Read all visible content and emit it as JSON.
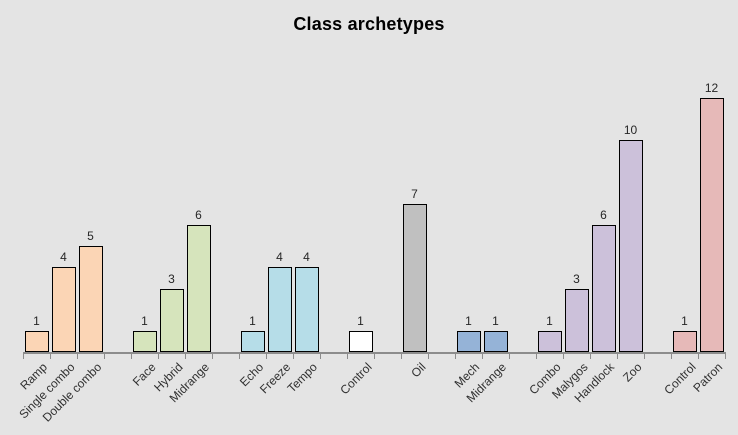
{
  "chart_data": {
    "type": "bar",
    "title": "Class archetypes",
    "xlabel": "",
    "ylabel": "",
    "ylim": [
      0,
      12
    ],
    "grid": false,
    "legend": "none",
    "value_labels": true,
    "category_label_rotation_deg": -45,
    "groups": [
      {
        "name": "group-1",
        "color": "#FBD5B5",
        "bars": [
          {
            "label": "Ramp",
            "value": 1
          },
          {
            "label": "Single combo",
            "value": 4
          },
          {
            "label": "Double combo",
            "value": 5
          }
        ]
      },
      {
        "name": "group-2",
        "color": "#D6E4BC",
        "bars": [
          {
            "label": "Face",
            "value": 1
          },
          {
            "label": "Hybrid",
            "value": 3
          },
          {
            "label": "Midrange",
            "value": 6
          }
        ]
      },
      {
        "name": "group-3",
        "color": "#B6DDE8",
        "bars": [
          {
            "label": "Echo",
            "value": 1
          },
          {
            "label": "Freeze",
            "value": 4
          },
          {
            "label": "Tempo",
            "value": 4
          }
        ]
      },
      {
        "name": "group-4",
        "color": "#FFFFFF",
        "bars": [
          {
            "label": "Control",
            "value": 1
          }
        ]
      },
      {
        "name": "group-5",
        "color": "#C0C0C0",
        "bars": [
          {
            "label": "Oil",
            "value": 7
          }
        ]
      },
      {
        "name": "group-6",
        "color": "#95B3D7",
        "bars": [
          {
            "label": "Mech",
            "value": 1
          },
          {
            "label": "Midrange",
            "value": 1
          }
        ]
      },
      {
        "name": "group-7",
        "color": "#CCC1DA",
        "bars": [
          {
            "label": "Combo",
            "value": 1
          },
          {
            "label": "Malygos",
            "value": 3
          },
          {
            "label": "Handlock",
            "value": 6
          },
          {
            "label": "Zoo",
            "value": 10
          }
        ]
      },
      {
        "name": "group-8",
        "color": "#E6B9B8",
        "bars": [
          {
            "label": "Control",
            "value": 1
          },
          {
            "label": "Patron",
            "value": 12
          }
        ]
      }
    ]
  },
  "colors": {
    "background": "#E4E4E4",
    "axis": "#8C8C8C",
    "bar_border": "#000000",
    "value_label": "#262626",
    "category_label": "#303030"
  }
}
